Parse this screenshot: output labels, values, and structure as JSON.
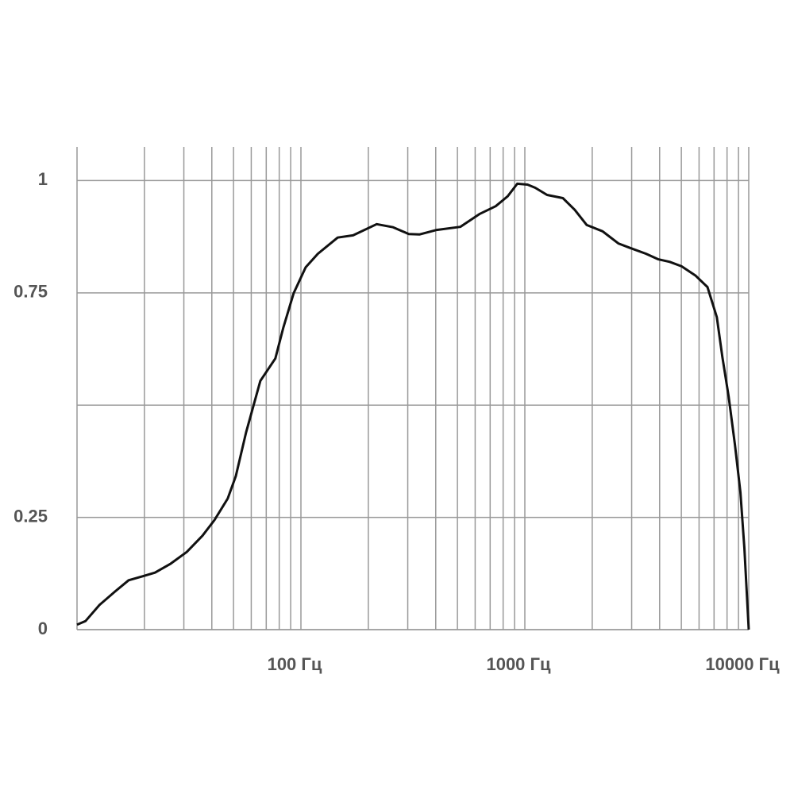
{
  "chart_data": {
    "type": "line",
    "xscale": "log",
    "grid": true,
    "xlim": [
      10,
      10000
    ],
    "ylim": [
      0,
      1.075
    ],
    "xticks": [
      {
        "value": 100,
        "label": "100 Гц"
      },
      {
        "value": 1000,
        "label": "1000 Гц"
      },
      {
        "value": 10000,
        "label": "10000 Гц"
      }
    ],
    "xminor": [
      20,
      30,
      40,
      50,
      60,
      70,
      80,
      90,
      200,
      300,
      400,
      500,
      600,
      700,
      800,
      900,
      2000,
      3000,
      4000,
      5000,
      6000,
      7000,
      8000,
      9000
    ],
    "yticks": [
      0,
      0.25,
      0.75,
      1
    ],
    "yminor": [
      0.5
    ],
    "series": [
      {
        "color": "#111111",
        "x": [
          10,
          10.9,
          12.6,
          14.8,
          17,
          19.7,
          22.3,
          26.2,
          30.9,
          36.3,
          41.1,
          47.1,
          51.2,
          56.9,
          65.9,
          76.9,
          83.5,
          92.8,
          105,
          119,
          146,
          171,
          218,
          258,
          303,
          338,
          404,
          515,
          630,
          741,
          838,
          925,
          1028,
          1113,
          1257,
          1479,
          1670,
          1891,
          2225,
          2617,
          2954,
          3478,
          3928,
          4436,
          5010,
          5795,
          6540,
          7204,
          7624,
          8131,
          8673,
          9180,
          9560,
          10000
        ],
        "values": [
          0.011,
          0.019,
          0.055,
          0.085,
          0.11,
          0.119,
          0.127,
          0.147,
          0.173,
          0.209,
          0.244,
          0.292,
          0.342,
          0.439,
          0.554,
          0.604,
          0.673,
          0.749,
          0.807,
          0.837,
          0.873,
          0.878,
          0.903,
          0.896,
          0.881,
          0.88,
          0.89,
          0.897,
          0.926,
          0.943,
          0.965,
          0.993,
          0.991,
          0.984,
          0.968,
          0.961,
          0.935,
          0.901,
          0.887,
          0.86,
          0.85,
          0.837,
          0.825,
          0.819,
          0.809,
          0.788,
          0.763,
          0.696,
          0.607,
          0.519,
          0.412,
          0.306,
          0.182,
          0
        ]
      }
    ]
  }
}
